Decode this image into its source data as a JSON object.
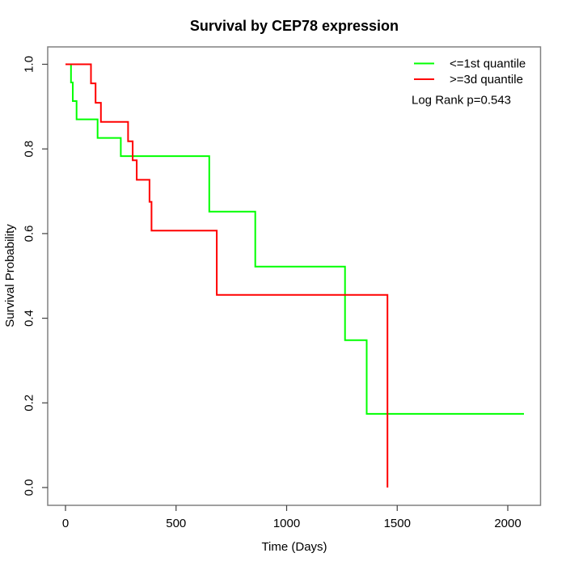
{
  "chart_data": {
    "type": "line",
    "subtype": "kaplan-meier-step",
    "title": "Survival by CEP78 expression",
    "xlabel": "Time (Days)",
    "ylabel": "Survival Probability",
    "xlim": [
      0,
      2100
    ],
    "ylim": [
      0.0,
      1.0
    ],
    "grid": false,
    "legend_position": "top-right",
    "annotation": "Log Rank p=0.543",
    "x_ticks": [
      0,
      500,
      1000,
      1500,
      2000
    ],
    "x_tick_labels": [
      "0",
      "500",
      "1000",
      "1500",
      "2000"
    ],
    "y_ticks": [
      0.0,
      0.2,
      0.4,
      0.6,
      0.8,
      1.0
    ],
    "y_tick_labels": [
      "0.0",
      "0.2",
      "0.4",
      "0.6",
      "0.8",
      "1.0"
    ],
    "series": [
      {
        "name": "<=1st quantile",
        "color": "#00ff00",
        "steps": [
          [
            0,
            1.0
          ],
          [
            25,
            0.957
          ],
          [
            33,
            0.913
          ],
          [
            50,
            0.87
          ],
          [
            145,
            0.826
          ],
          [
            250,
            0.783
          ],
          [
            650,
            0.652
          ],
          [
            858,
            0.522
          ],
          [
            1264,
            0.348
          ],
          [
            1362,
            0.174
          ]
        ],
        "end_time": 2073,
        "end_survival": 0.174
      },
      {
        "name": ">=3d quantile",
        "color": "#ff0000",
        "steps": [
          [
            0,
            1.0
          ],
          [
            115,
            0.955
          ],
          [
            136,
            0.909
          ],
          [
            160,
            0.864
          ],
          [
            283,
            0.818
          ],
          [
            304,
            0.773
          ],
          [
            322,
            0.727
          ],
          [
            380,
            0.675
          ],
          [
            389,
            0.607
          ],
          [
            684,
            0.455
          ],
          [
            1456,
            0.0
          ]
        ],
        "end_time": 1456,
        "end_survival": 0.0
      }
    ],
    "legend": [
      {
        "label": "<=1st quantile",
        "color": "#00ff00"
      },
      {
        "label": ">=3d quantile",
        "color": "#ff0000"
      }
    ],
    "colors": {
      "group_low": "#00ff00",
      "group_high": "#ff0000",
      "box": "#808080",
      "tick": "#404040",
      "text": "#000000"
    }
  }
}
